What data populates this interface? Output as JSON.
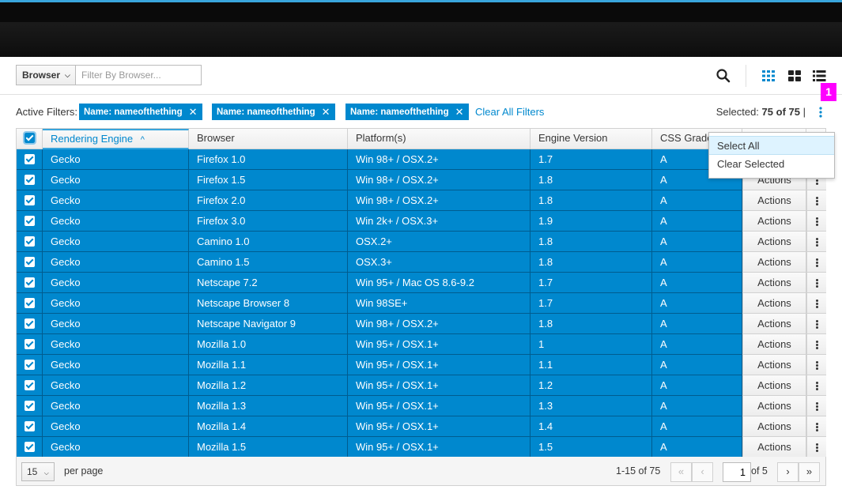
{
  "toolbar": {
    "filter_type": "Browser",
    "filter_placeholder": "Filter By Browser...",
    "icons": [
      "search-icon",
      "card-view-icon",
      "grid-view-icon",
      "list-view-icon"
    ]
  },
  "filters": {
    "label": "Active Filters:",
    "chips": [
      "Name: nameofthething",
      "Name: nameofthething",
      "Name: nameofthething"
    ],
    "clear_all": "Clear All Filters",
    "selected_prefix": "Selected:",
    "selected_count": "75",
    "selected_total": "of 75",
    "separator": "|"
  },
  "badge": "1",
  "dropdown": {
    "items": [
      "Select All",
      "Clear Selected"
    ]
  },
  "table": {
    "columns": [
      "Rendering Engine",
      "Browser",
      "Platform(s)",
      "Engine Version",
      "CSS Grade"
    ],
    "sort_indicator": "^",
    "actions_label": "Actions",
    "rows": [
      [
        "Gecko",
        "Firefox 1.0",
        "Win 98+ / OSX.2+",
        "1.7",
        "A"
      ],
      [
        "Gecko",
        "Firefox 1.5",
        "Win 98+ / OSX.2+",
        "1.8",
        "A"
      ],
      [
        "Gecko",
        "Firefox 2.0",
        "Win 98+ / OSX.2+",
        "1.8",
        "A"
      ],
      [
        "Gecko",
        "Firefox 3.0",
        "Win 2k+ / OSX.3+",
        "1.9",
        "A"
      ],
      [
        "Gecko",
        "Camino 1.0",
        "OSX.2+",
        "1.8",
        "A"
      ],
      [
        "Gecko",
        "Camino 1.5",
        "OSX.3+",
        "1.8",
        "A"
      ],
      [
        "Gecko",
        "Netscape 7.2",
        "Win 95+ / Mac OS 8.6-9.2",
        "1.7",
        "A"
      ],
      [
        "Gecko",
        "Netscape Browser 8",
        "Win 98SE+",
        "1.7",
        "A"
      ],
      [
        "Gecko",
        "Netscape Navigator 9",
        "Win 98+ / OSX.2+",
        "1.8",
        "A"
      ],
      [
        "Gecko",
        "Mozilla 1.0",
        "Win 95+ / OSX.1+",
        "1",
        "A"
      ],
      [
        "Gecko",
        "Mozilla 1.1",
        "Win 95+ / OSX.1+",
        "1.1",
        "A"
      ],
      [
        "Gecko",
        "Mozilla 1.2",
        "Win 95+ / OSX.1+",
        "1.2",
        "A"
      ],
      [
        "Gecko",
        "Mozilla 1.3",
        "Win 95+ / OSX.1+",
        "1.3",
        "A"
      ],
      [
        "Gecko",
        "Mozilla 1.4",
        "Win 95+ / OSX.1+",
        "1.4",
        "A"
      ],
      [
        "Gecko",
        "Mozilla 1.5",
        "Win 95+ / OSX.1+",
        "1.5",
        "A"
      ]
    ]
  },
  "pagination": {
    "per_page_value": "15",
    "per_page_label": "per page",
    "range": "1-15 of 75",
    "current_page": "1",
    "total_pages": "of 5"
  },
  "colors": {
    "accent": "#0088ce",
    "selected_row": "#0088ce",
    "badge": "#ff00ff",
    "header_bar": "#0a0a0a"
  }
}
